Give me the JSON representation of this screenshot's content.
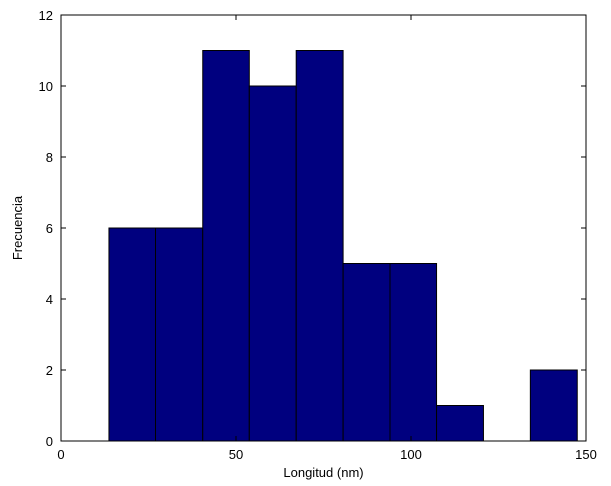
{
  "chart_data": {
    "type": "bar",
    "title": "",
    "xlabel": "Longitud (nm)",
    "ylabel": "Frecuencia",
    "xlim": [
      0,
      150
    ],
    "ylim": [
      0,
      12
    ],
    "xticks": [
      0,
      50,
      100,
      150
    ],
    "yticks": [
      0,
      2,
      4,
      6,
      8,
      10,
      12
    ],
    "grid": false,
    "bar_color": "#00007f",
    "bins": [
      {
        "x0": 13.7,
        "x1": 27.0,
        "count": 6
      },
      {
        "x0": 27.0,
        "x1": 40.5,
        "count": 6
      },
      {
        "x0": 40.5,
        "x1": 53.8,
        "count": 11
      },
      {
        "x0": 53.8,
        "x1": 67.2,
        "count": 10
      },
      {
        "x0": 67.2,
        "x1": 80.6,
        "count": 11
      },
      {
        "x0": 80.6,
        "x1": 94.0,
        "count": 5
      },
      {
        "x0": 94.0,
        "x1": 107.3,
        "count": 5
      },
      {
        "x0": 107.3,
        "x1": 120.7,
        "count": 1
      },
      {
        "x0": 120.7,
        "x1": 134.1,
        "count": 0
      },
      {
        "x0": 134.1,
        "x1": 147.5,
        "count": 2
      }
    ]
  }
}
